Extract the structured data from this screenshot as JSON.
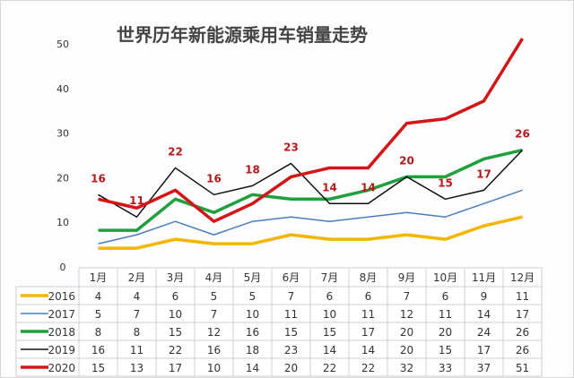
{
  "chart_data": {
    "type": "line",
    "title": "世界历年新能源乘用车销量走势",
    "categories": [
      "1月",
      "2月",
      "3月",
      "4月",
      "5月",
      "6月",
      "7月",
      "8月",
      "9月",
      "10月",
      "11月",
      "12月"
    ],
    "ylim": [
      0,
      50
    ],
    "yticks": [
      "0",
      "10",
      "20",
      "30",
      "40",
      "50"
    ],
    "grid": false,
    "legend": "table-bottom",
    "series": [
      {
        "name": "2016",
        "color": "#f2b600",
        "width": 3.5,
        "values": [
          4,
          4,
          6,
          5,
          5,
          7,
          6,
          6,
          7,
          6,
          9,
          11
        ]
      },
      {
        "name": "2017",
        "color": "#4a7ebb",
        "width": 1.5,
        "values": [
          5,
          7,
          10,
          7,
          10,
          11,
          10,
          11,
          12,
          11,
          14,
          17
        ]
      },
      {
        "name": "2018",
        "color": "#1fa03c",
        "width": 3.5,
        "values": [
          8,
          8,
          15,
          12,
          16,
          15,
          15,
          17,
          20,
          20,
          24,
          26
        ]
      },
      {
        "name": "2019",
        "color": "#111111",
        "width": 1.5,
        "values": [
          16,
          11,
          22,
          16,
          18,
          23,
          14,
          14,
          20,
          15,
          17,
          26
        ]
      },
      {
        "name": "2020",
        "color": "#d41515",
        "width": 3.5,
        "values": [
          15,
          13,
          17,
          10,
          14,
          20,
          22,
          22,
          32,
          33,
          37,
          51
        ]
      }
    ],
    "data_labels": {
      "series": "2019",
      "color": "#b51a1a",
      "values": [
        "16",
        "11",
        "22",
        "16",
        "18",
        "23",
        "14",
        "14",
        "20",
        "15",
        "17",
        "26"
      ]
    },
    "table_display": {
      "2019_12": "26",
      "2020_12": "51"
    }
  }
}
